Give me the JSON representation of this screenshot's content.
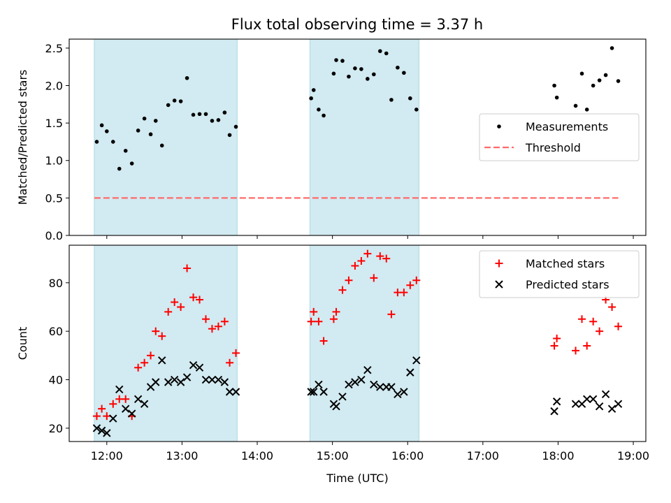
{
  "title": "Flux total observing time = 3.37 h",
  "colors": {
    "shade": "#add8e6",
    "matched": "#ff0000",
    "predicted": "#000000",
    "measurement": "#000000",
    "threshold": "#ff6b6b"
  },
  "chart_data": [
    {
      "type": "scatter",
      "panel": "top",
      "ylabel": "Matched/Predicted stars",
      "xlabel": "",
      "xlim": [
        "11:30",
        "19:10"
      ],
      "ylim": [
        0,
        2.62
      ],
      "yticks": [
        "0.0",
        "0.5",
        "1.0",
        "1.5",
        "2.0",
        "2.5"
      ],
      "xticks": [
        "12:00",
        "13:00",
        "14:00",
        "15:00",
        "16:00",
        "17:00",
        "18:00",
        "19:00"
      ],
      "x_tick_labels_shown": false,
      "grid": false,
      "legend": "center-right",
      "shaded_intervals": [
        [
          "11:50",
          "13:44"
        ],
        [
          "14:42",
          "16:09"
        ]
      ],
      "series": [
        {
          "name": "Measurements",
          "marker": "dot",
          "points": [
            [
              "11:52",
              1.25
            ],
            [
              "11:56",
              1.47
            ],
            [
              "12:00",
              1.39
            ],
            [
              "12:05",
              1.25
            ],
            [
              "12:10",
              0.89
            ],
            [
              "12:15",
              1.13
            ],
            [
              "12:20",
              0.96
            ],
            [
              "12:25",
              1.4
            ],
            [
              "12:30",
              1.56
            ],
            [
              "12:35",
              1.35
            ],
            [
              "12:39",
              1.53
            ],
            [
              "12:44",
              1.2
            ],
            [
              "12:49",
              1.74
            ],
            [
              "12:54",
              1.8
            ],
            [
              "12:59",
              1.79
            ],
            [
              "13:04",
              2.1
            ],
            [
              "13:09",
              1.61
            ],
            [
              "13:14",
              1.62
            ],
            [
              "13:19",
              1.62
            ],
            [
              "13:24",
              1.53
            ],
            [
              "13:29",
              1.54
            ],
            [
              "13:34",
              1.64
            ],
            [
              "13:38",
              1.34
            ],
            [
              "13:43",
              1.45
            ],
            [
              "14:43",
              1.83
            ],
            [
              "14:45",
              1.94
            ],
            [
              "14:49",
              1.68
            ],
            [
              "14:53",
              1.6
            ],
            [
              "15:01",
              2.16
            ],
            [
              "15:03",
              2.34
            ],
            [
              "15:08",
              2.33
            ],
            [
              "15:13",
              2.12
            ],
            [
              "15:18",
              2.23
            ],
            [
              "15:23",
              2.22
            ],
            [
              "15:28",
              2.09
            ],
            [
              "15:33",
              2.15
            ],
            [
              "15:38",
              2.46
            ],
            [
              "15:43",
              2.43
            ],
            [
              "15:47",
              1.81
            ],
            [
              "15:52",
              2.24
            ],
            [
              "15:57",
              2.17
            ],
            [
              "16:02",
              1.83
            ],
            [
              "16:07",
              1.68
            ],
            [
              "17:57",
              2.0
            ],
            [
              "17:59",
              1.84
            ],
            [
              "18:14",
              1.73
            ],
            [
              "18:19",
              2.16
            ],
            [
              "18:23",
              1.68
            ],
            [
              "18:28",
              2.0
            ],
            [
              "18:33",
              2.07
            ],
            [
              "18:38",
              2.14
            ],
            [
              "18:43",
              2.5
            ],
            [
              "18:48",
              2.06
            ]
          ]
        },
        {
          "name": "Threshold",
          "marker": "dashed-line",
          "points": [
            [
              "11:50",
              0.5
            ],
            [
              "18:48",
              0.5
            ]
          ]
        }
      ]
    },
    {
      "type": "scatter",
      "panel": "bottom",
      "ylabel": "Count",
      "xlabel": "Time (UTC)",
      "xlim": [
        "11:30",
        "19:10"
      ],
      "ylim": [
        14.5,
        95.5
      ],
      "yticks": [
        "20",
        "40",
        "60",
        "80"
      ],
      "xticks": [
        "12:00",
        "13:00",
        "14:00",
        "15:00",
        "16:00",
        "17:00",
        "18:00",
        "19:00"
      ],
      "grid": false,
      "legend": "top-right",
      "shaded_intervals": [
        [
          "11:50",
          "13:44"
        ],
        [
          "14:42",
          "16:09"
        ]
      ],
      "series": [
        {
          "name": "Matched stars",
          "marker": "plus",
          "points": [
            [
              "11:52",
              25
            ],
            [
              "11:56",
              28
            ],
            [
              "12:00",
              25
            ],
            [
              "12:05",
              30
            ],
            [
              "12:10",
              32
            ],
            [
              "12:15",
              32
            ],
            [
              "12:20",
              25
            ],
            [
              "12:25",
              45
            ],
            [
              "12:30",
              47
            ],
            [
              "12:35",
              50
            ],
            [
              "12:39",
              60
            ],
            [
              "12:44",
              58
            ],
            [
              "12:49",
              68
            ],
            [
              "12:54",
              72
            ],
            [
              "12:59",
              70
            ],
            [
              "13:04",
              86
            ],
            [
              "13:09",
              74
            ],
            [
              "13:14",
              73
            ],
            [
              "13:19",
              65
            ],
            [
              "13:24",
              61
            ],
            [
              "13:29",
              62
            ],
            [
              "13:34",
              64
            ],
            [
              "13:38",
              47
            ],
            [
              "13:43",
              51
            ],
            [
              "14:43",
              64
            ],
            [
              "14:45",
              68
            ],
            [
              "14:49",
              64
            ],
            [
              "14:53",
              56
            ],
            [
              "15:01",
              65
            ],
            [
              "15:03",
              68
            ],
            [
              "15:08",
              77
            ],
            [
              "15:13",
              81
            ],
            [
              "15:18",
              87
            ],
            [
              "15:23",
              89
            ],
            [
              "15:28",
              92
            ],
            [
              "15:33",
              82
            ],
            [
              "15:38",
              91
            ],
            [
              "15:43",
              90
            ],
            [
              "15:47",
              67
            ],
            [
              "15:52",
              76
            ],
            [
              "15:57",
              76
            ],
            [
              "16:02",
              79
            ],
            [
              "16:07",
              81
            ],
            [
              "17:57",
              54
            ],
            [
              "17:59",
              57
            ],
            [
              "18:14",
              52
            ],
            [
              "18:19",
              65
            ],
            [
              "18:23",
              54
            ],
            [
              "18:28",
              64
            ],
            [
              "18:33",
              60
            ],
            [
              "18:38",
              73
            ],
            [
              "18:43",
              70
            ],
            [
              "18:48",
              62
            ]
          ]
        },
        {
          "name": "Predicted stars",
          "marker": "x",
          "points": [
            [
              "11:52",
              20
            ],
            [
              "11:56",
              19
            ],
            [
              "12:00",
              18
            ],
            [
              "12:05",
              24
            ],
            [
              "12:10",
              36
            ],
            [
              "12:15",
              28
            ],
            [
              "12:20",
              26
            ],
            [
              "12:25",
              32
            ],
            [
              "12:30",
              30
            ],
            [
              "12:35",
              37
            ],
            [
              "12:39",
              39
            ],
            [
              "12:44",
              48
            ],
            [
              "12:49",
              39
            ],
            [
              "12:54",
              40
            ],
            [
              "12:59",
              39
            ],
            [
              "13:04",
              41
            ],
            [
              "13:09",
              46
            ],
            [
              "13:14",
              45
            ],
            [
              "13:19",
              40
            ],
            [
              "13:24",
              40
            ],
            [
              "13:29",
              40
            ],
            [
              "13:34",
              39
            ],
            [
              "13:38",
              35
            ],
            [
              "13:43",
              35
            ],
            [
              "14:43",
              35
            ],
            [
              "14:45",
              35
            ],
            [
              "14:49",
              38
            ],
            [
              "14:53",
              35
            ],
            [
              "15:01",
              30
            ],
            [
              "15:03",
              29
            ],
            [
              "15:08",
              33
            ],
            [
              "15:13",
              38
            ],
            [
              "15:18",
              39
            ],
            [
              "15:23",
              40
            ],
            [
              "15:28",
              44
            ],
            [
              "15:33",
              38
            ],
            [
              "15:38",
              37
            ],
            [
              "15:43",
              37
            ],
            [
              "15:47",
              37
            ],
            [
              "15:52",
              34
            ],
            [
              "15:57",
              35
            ],
            [
              "16:02",
              43
            ],
            [
              "16:07",
              48
            ],
            [
              "17:57",
              27
            ],
            [
              "17:59",
              31
            ],
            [
              "18:14",
              30
            ],
            [
              "18:19",
              30
            ],
            [
              "18:23",
              32
            ],
            [
              "18:28",
              32
            ],
            [
              "18:33",
              29
            ],
            [
              "18:38",
              34
            ],
            [
              "18:43",
              28
            ],
            [
              "18:48",
              30
            ]
          ]
        }
      ]
    }
  ]
}
